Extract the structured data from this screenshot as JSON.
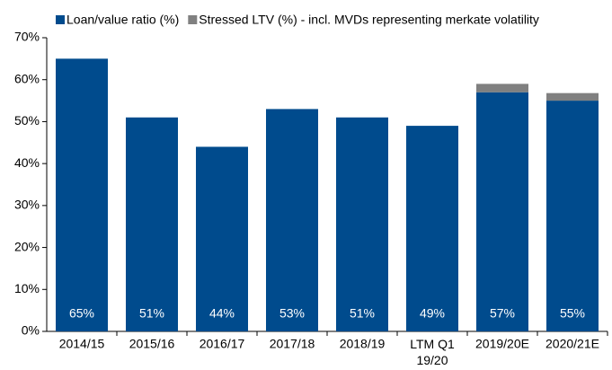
{
  "chart_data": {
    "type": "bar",
    "stacked": true,
    "categories": [
      "2014/15",
      "2015/16",
      "2016/17",
      "2017/18",
      "2018/19",
      "LTM Q1\n19/20",
      "2019/20E",
      "2020/21E"
    ],
    "series": [
      {
        "name": "Loan/value ratio (%)",
        "color": "#004b8d",
        "values": [
          65,
          51,
          44,
          53,
          51,
          49,
          57,
          55
        ],
        "value_labels": [
          "65%",
          "51%",
          "44%",
          "53%",
          "51%",
          "49%",
          "57%",
          "55%"
        ]
      },
      {
        "name": "Stressed LTV (%) - incl. MVDs representing merkate volatility",
        "color": "#808080",
        "values": [
          null,
          null,
          null,
          null,
          null,
          null,
          2,
          1.8
        ]
      }
    ],
    "ylim": [
      0,
      70
    ],
    "yticks": [
      {
        "value": 0,
        "label": "0%"
      },
      {
        "value": 10,
        "label": "10%"
      },
      {
        "value": 20,
        "label": "20%"
      },
      {
        "value": 30,
        "label": "30%"
      },
      {
        "value": 40,
        "label": "40%"
      },
      {
        "value": 50,
        "label": "50%"
      },
      {
        "value": 60,
        "label": "60%"
      },
      {
        "value": 70,
        "label": "70%"
      }
    ],
    "grid": false,
    "legend": "top"
  }
}
